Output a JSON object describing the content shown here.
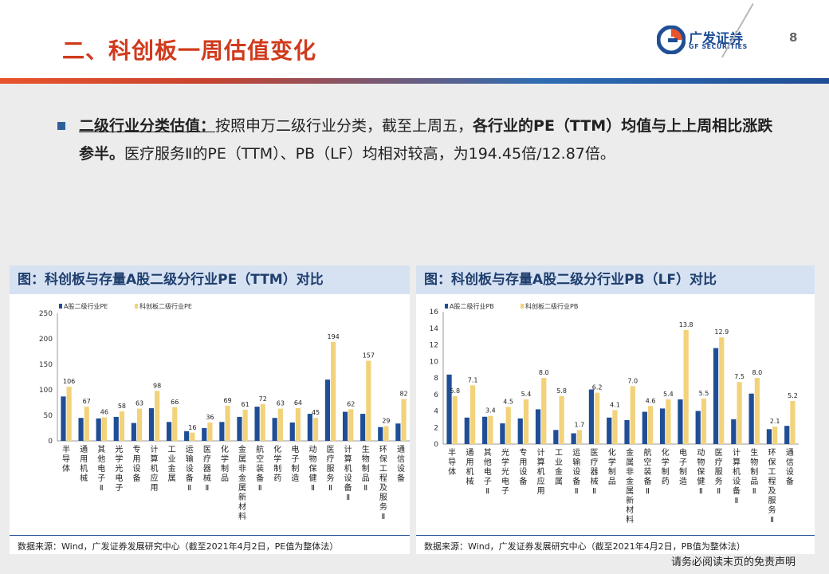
{
  "header": {
    "title": "二、科创板一周估值变化",
    "logo_cn": "广发证券",
    "logo_en": "GF SECURITIES",
    "page_number": "8",
    "colors": {
      "title": "#d03a1c",
      "brand_blue": "#1f4e96"
    }
  },
  "paragraph": {
    "lead": "二级行业分类估值：",
    "part1": "按照申万二级行业分类，截至上周五，",
    "bold1": "各行业的PE（TTM）均值与上上周相比涨跌参半。",
    "part2": "医疗服务Ⅱ的PE（TTM）、PB（LF）均相对较高，为194.45倍/12.87倍。"
  },
  "footer": {
    "disclaimer": "请务必阅读末页的免责声明"
  },
  "chart_data": [
    {
      "type": "bar",
      "title": "图：科创板与存量A股二级分行业PE（TTM）对比",
      "source": "数据来源：Wind，广发证券发展研究中心（截至2021年4月2日，PE值为整体法）",
      "legend_position": "top-left",
      "ylim": [
        0,
        250
      ],
      "yticks": [
        0,
        50,
        100,
        150,
        200,
        250
      ],
      "categories": [
        "半导体",
        "通用机械",
        "其他电子Ⅱ",
        "光学光电子",
        "专用设备",
        "计算机应用",
        "工业金属",
        "运输设备Ⅱ",
        "医疗器械Ⅱ",
        "化学制品",
        "金属非金属新材料",
        "航空装备Ⅱ",
        "化学制药",
        "电子制造",
        "动物保健Ⅱ",
        "医疗服务Ⅱ",
        "计算机设备Ⅱ",
        "生物制品Ⅱ",
        "环保工程及服务Ⅱ",
        "通信设备"
      ],
      "series": [
        {
          "name": "A股二级行业PE",
          "color": "#1f4e96",
          "values": [
            87,
            45,
            44,
            47,
            35,
            64,
            37,
            19,
            25,
            37,
            47,
            67,
            45,
            36,
            53,
            120,
            57,
            53,
            27,
            34
          ]
        },
        {
          "name": "科创板二级行业PE",
          "color": "#f2d27a",
          "values": [
            106,
            67,
            46,
            58,
            63,
            98,
            66,
            16,
            36,
            69,
            61,
            72,
            63,
            64,
            45,
            194,
            62,
            157,
            29,
            82
          ]
        }
      ],
      "data_labels": [
        106,
        67,
        46,
        58,
        63,
        98,
        66,
        16,
        36,
        69,
        61,
        72,
        63,
        64,
        45,
        194,
        62,
        157,
        29,
        82
      ]
    },
    {
      "type": "bar",
      "title": "图：科创板与存量A股二级分行业PB（LF）对比",
      "source": "数据来源：Wind，广发证券发展研究中心（截至2021年4月2日，PB值为整体法）",
      "legend_position": "top-left",
      "ylim": [
        0,
        16
      ],
      "yticks": [
        0,
        2,
        4,
        6,
        8,
        10,
        12,
        14,
        16
      ],
      "categories": [
        "半导体",
        "通用机械",
        "其他电子Ⅱ",
        "光学光电子",
        "专用设备",
        "计算机应用",
        "工业金属",
        "运输设备Ⅱ",
        "医疗器械Ⅱ",
        "化学制品",
        "金属非金属新材料",
        "航空装备Ⅱ",
        "化学制药",
        "电子制造",
        "动物保健Ⅱ",
        "医疗服务Ⅱ",
        "计算机设备Ⅱ",
        "生物制品Ⅱ",
        "环保工程及服务Ⅱ",
        "通信设备"
      ],
      "series": [
        {
          "name": "A股二级行业PB",
          "color": "#1f4e96",
          "values": [
            8.4,
            3.2,
            3.3,
            2.5,
            3.1,
            4.2,
            1.7,
            1.3,
            6.6,
            3.2,
            2.9,
            3.9,
            4.3,
            5.4,
            4.0,
            11.6,
            3.0,
            6.1,
            1.8,
            2.2
          ]
        },
        {
          "name": "科创板二级行业PB",
          "color": "#f2d27a",
          "values": [
            5.8,
            7.1,
            3.4,
            4.5,
            5.4,
            8.0,
            5.8,
            1.7,
            6.2,
            4.1,
            7.0,
            4.6,
            5.4,
            13.8,
            5.5,
            12.9,
            7.5,
            8.0,
            2.1,
            5.2
          ]
        }
      ],
      "data_labels": [
        "5.8",
        "7.1",
        "3.4",
        "4.5",
        "5.4",
        "8.0",
        "5.8",
        "1.7",
        "6.2",
        "4.1",
        "7.0",
        "4.6",
        "5.4",
        "13.8",
        "5.5",
        "12.9",
        "7.5",
        "8.0",
        "2.1",
        "5.2"
      ]
    }
  ]
}
